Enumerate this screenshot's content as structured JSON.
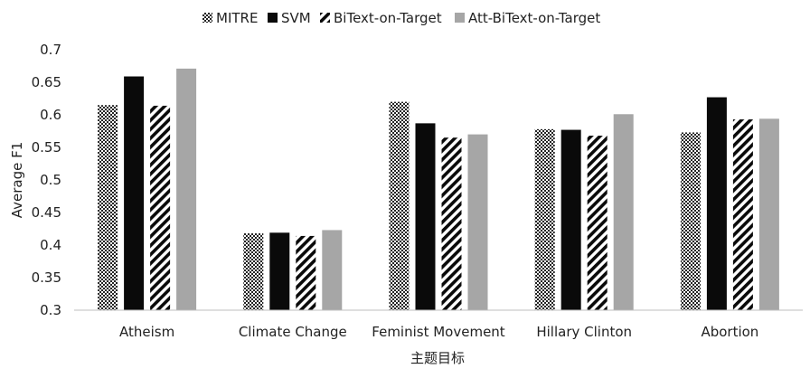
{
  "chart_data": {
    "type": "bar",
    "title": "",
    "xlabel": "主题目标",
    "ylabel": "Average F1",
    "ylim": [
      0.3,
      0.7
    ],
    "yticks": [
      0.3,
      0.35,
      0.4,
      0.45,
      0.5,
      0.55,
      0.6,
      0.65,
      0.7
    ],
    "ytick_labels": [
      "0.3",
      "0.35",
      "0.4",
      "0.45",
      "0.5",
      "0.55",
      "0.6",
      "0.65",
      "0.7"
    ],
    "grid": false,
    "legend_position": "top",
    "categories": [
      "Atheism",
      "Climate Change",
      "Feminist Movement",
      "Hillary Clinton",
      "Abortion"
    ],
    "series": [
      {
        "name": "MITRE",
        "fill": "checker",
        "values": [
          0.615,
          0.418,
          0.62,
          0.578,
          0.573
        ]
      },
      {
        "name": "SVM",
        "fill": "solid-black",
        "values": [
          0.659,
          0.419,
          0.587,
          0.577,
          0.627
        ]
      },
      {
        "name": "BiText-on-Target",
        "fill": "diagonal-stripes",
        "values": [
          0.614,
          0.414,
          0.565,
          0.568,
          0.593
        ]
      },
      {
        "name": "Att-BiText-on-Target",
        "fill": "solid-gray",
        "values": [
          0.671,
          0.423,
          0.57,
          0.601,
          0.594
        ]
      }
    ],
    "colors": {
      "black": "#0a0a0a",
      "gray": "#a6a6a6",
      "axis": "#bfbfbf"
    }
  }
}
